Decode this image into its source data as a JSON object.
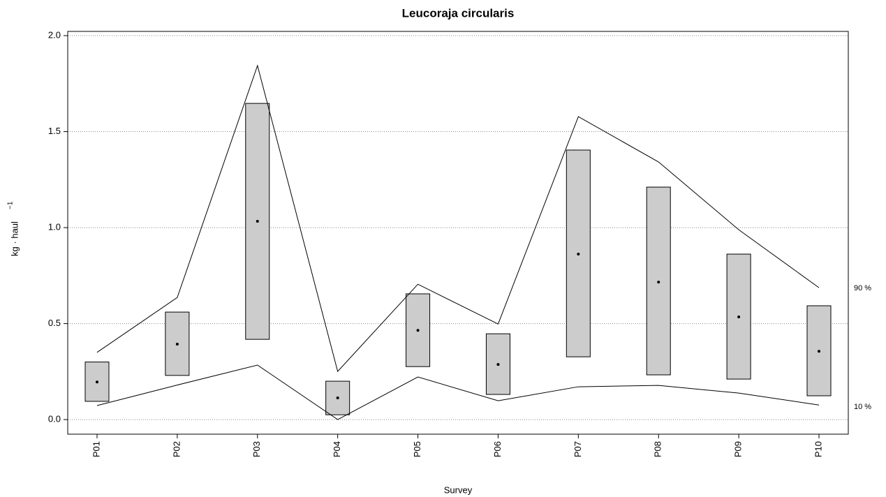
{
  "chart_data": {
    "type": "box",
    "title": "Leucoraja circularis",
    "xlabel": "Survey",
    "ylabel": "kg · haul",
    "ylabel_exponent": "−1",
    "categories": [
      "P01",
      "P02",
      "P03",
      "P04",
      "P05",
      "P06",
      "P07",
      "P08",
      "P09",
      "P10"
    ],
    "box_lower": [
      0.095,
      0.23,
      0.418,
      0.025,
      0.276,
      0.131,
      0.327,
      0.233,
      0.211,
      0.124
    ],
    "box_upper": [
      0.3,
      0.56,
      1.647,
      0.2,
      0.655,
      0.447,
      1.404,
      1.211,
      0.862,
      0.593
    ],
    "means": [
      0.196,
      0.393,
      1.033,
      0.113,
      0.465,
      0.287,
      0.862,
      0.716,
      0.535,
      0.356
    ],
    "box_color": "#cccccc",
    "series": [
      {
        "name": "90 %",
        "color": "#000000",
        "values": [
          0.35,
          0.636,
          1.844,
          0.251,
          0.705,
          0.498,
          1.578,
          1.342,
          0.989,
          0.687
        ]
      },
      {
        "name": "10 %",
        "color": "#000000",
        "values": [
          0.073,
          0.18,
          0.284,
          0.0,
          0.222,
          0.098,
          0.171,
          0.178,
          0.138,
          0.076
        ]
      }
    ],
    "ylim": [
      -0.076,
      2.022
    ],
    "yticks": [
      {
        "value": 0,
        "label": "0.0"
      },
      0.5,
      {
        "value": 1,
        "label": "1.0"
      },
      1.5,
      {
        "value": 2,
        "label": "2.0"
      }
    ],
    "grid": true
  }
}
